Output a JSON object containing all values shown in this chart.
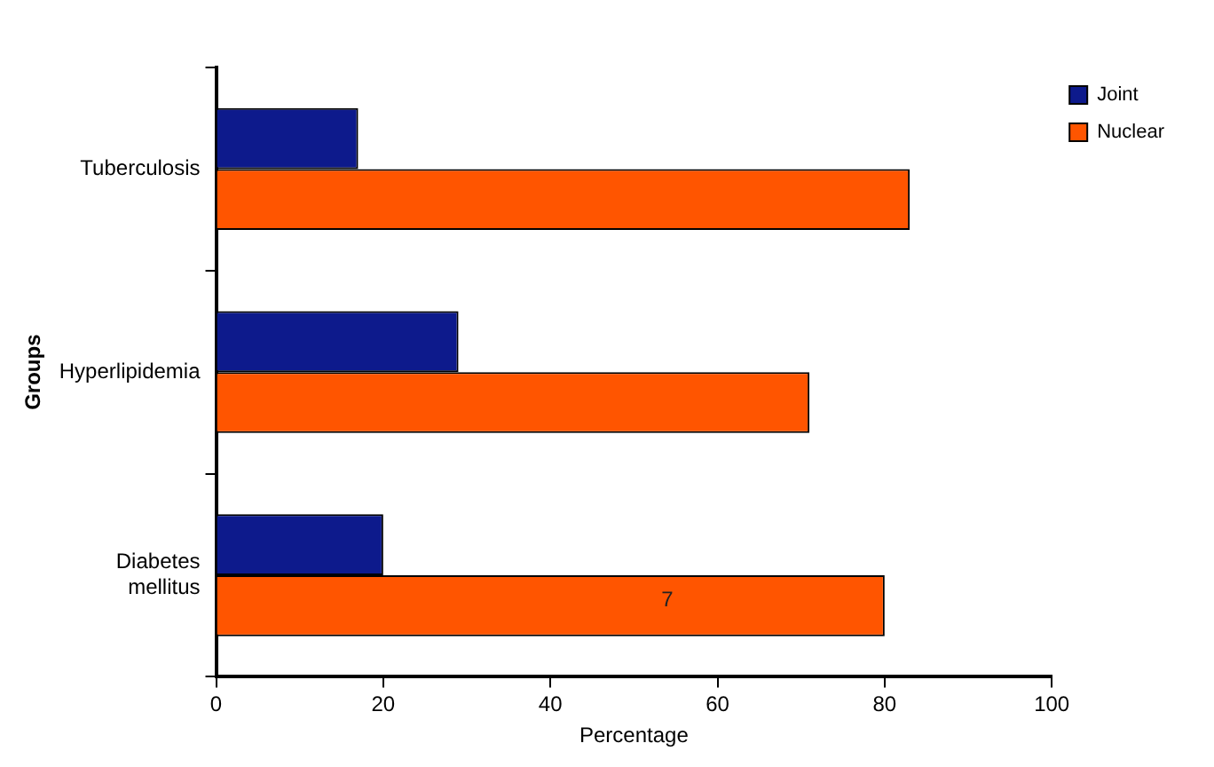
{
  "chart_data": {
    "type": "bar",
    "orientation": "horizontal",
    "xlabel": "Percentage",
    "ylabel": "Groups",
    "categories": [
      "Tuberculosis",
      "Hyperlipidemia",
      "Diabetes mellitus"
    ],
    "series": [
      {
        "name": "Joint",
        "color": "#0d1a8c",
        "values": [
          17,
          29,
          20
        ]
      },
      {
        "name": "Nuclear",
        "color": "#ff5500",
        "values": [
          83,
          71,
          80
        ]
      }
    ],
    "xlim": [
      0,
      100
    ],
    "xticks": [
      0,
      20,
      40,
      60,
      80,
      100
    ],
    "grid": false,
    "legend": "top right",
    "annotations": [
      {
        "text": "7",
        "x": 54,
        "y": "Diabetes mellitus"
      }
    ]
  }
}
